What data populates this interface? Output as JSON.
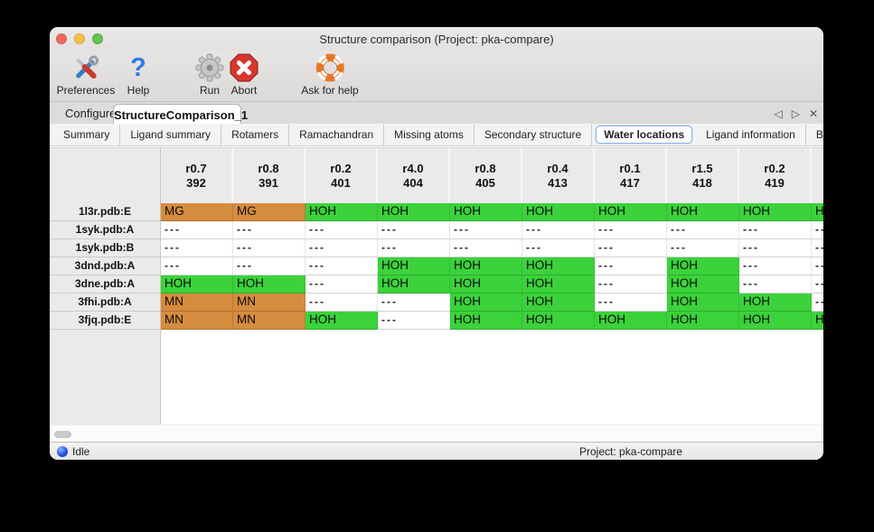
{
  "window": {
    "title": "Structure comparison (Project: pka-compare)"
  },
  "toolbar": {
    "buttons": [
      {
        "label": "Preferences",
        "icon": "tools-icon"
      },
      {
        "label": "Help",
        "icon": "question-mark-icon"
      },
      {
        "label": "Run",
        "icon": "gear-icon"
      },
      {
        "label": "Abort",
        "icon": "abort-icon"
      },
      {
        "label": "Ask for help",
        "icon": "life-ring-icon"
      }
    ]
  },
  "tabs": {
    "items": [
      {
        "label": "Configure",
        "active": false
      },
      {
        "label": "StructureComparison_1",
        "active": true
      }
    ]
  },
  "subtabs": {
    "items": [
      "Summary",
      "Ligand summary",
      "Rotamers",
      "Ramachandran",
      "Missing atoms",
      "Secondary structure",
      "Water locations",
      "Ligand information",
      "B-factors"
    ],
    "selected": "Water locations"
  },
  "table": {
    "columns": [
      {
        "line1": "r0.7",
        "line2": "392"
      },
      {
        "line1": "r0.8",
        "line2": "391"
      },
      {
        "line1": "r0.2",
        "line2": "401"
      },
      {
        "line1": "r4.0",
        "line2": "404"
      },
      {
        "line1": "r0.8",
        "line2": "405"
      },
      {
        "line1": "r0.4",
        "line2": "413"
      },
      {
        "line1": "r0.1",
        "line2": "417"
      },
      {
        "line1": "r1.5",
        "line2": "418"
      },
      {
        "line1": "r0.2",
        "line2": "419"
      },
      {
        "line1": "",
        "line2": ""
      }
    ],
    "rows": [
      {
        "label": "1l3r.pdb:E",
        "cells": [
          "MG",
          "MG",
          "HOH",
          "HOH",
          "HOH",
          "HOH",
          "HOH",
          "HOH",
          "HOH",
          "HOH"
        ]
      },
      {
        "label": "1syk.pdb:A",
        "cells": [
          "---",
          "---",
          "---",
          "---",
          "---",
          "---",
          "---",
          "---",
          "---",
          "---"
        ]
      },
      {
        "label": "1syk.pdb:B",
        "cells": [
          "---",
          "---",
          "---",
          "---",
          "---",
          "---",
          "---",
          "---",
          "---",
          "---"
        ]
      },
      {
        "label": "3dnd.pdb:A",
        "cells": [
          "---",
          "---",
          "---",
          "HOH",
          "HOH",
          "HOH",
          "---",
          "HOH",
          "---",
          "---"
        ]
      },
      {
        "label": "3dne.pdb:A",
        "cells": [
          "HOH",
          "HOH",
          "---",
          "HOH",
          "HOH",
          "HOH",
          "---",
          "HOH",
          "---",
          "---"
        ]
      },
      {
        "label": "3fhi.pdb:A",
        "cells": [
          "MN",
          "MN",
          "---",
          "---",
          "HOH",
          "HOH",
          "---",
          "HOH",
          "HOH",
          "---"
        ]
      },
      {
        "label": "3fjq.pdb:E",
        "cells": [
          "MN",
          "MN",
          "HOH",
          "---",
          "HOH",
          "HOH",
          "HOH",
          "HOH",
          "HOH",
          "HOH"
        ]
      }
    ],
    "cell_colors": {
      "HOH": "#3bd23b",
      "MG": "#d68c3e",
      "MN": "#d68c3e",
      "---": "#ffffff"
    }
  },
  "statusbar": {
    "status": "Idle",
    "project": "Project: pka-compare"
  }
}
